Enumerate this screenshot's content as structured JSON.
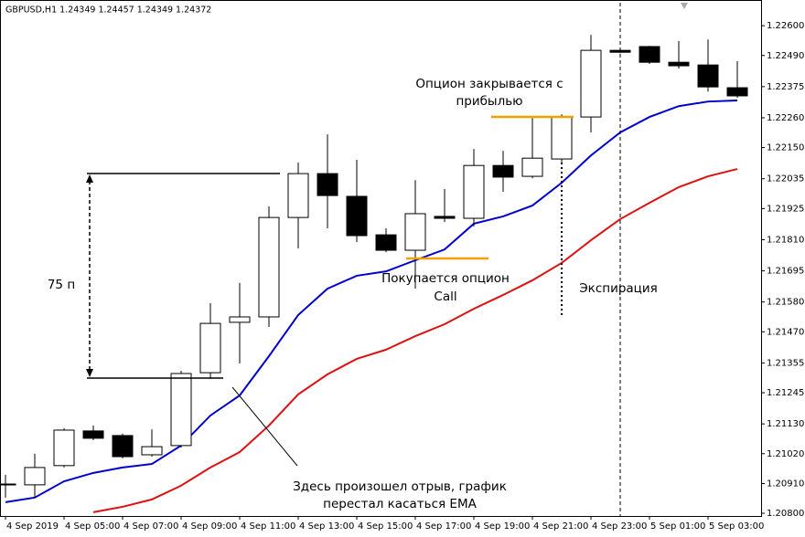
{
  "chart_data": {
    "type": "candlestick",
    "title": "GBPUSD,H1  1.24349 1.24457 1.24349 1.24372",
    "categories": [
      "4 Sep 2019",
      null,
      "4 Sep 05:00",
      null,
      "4 Sep 07:00",
      null,
      "4 Sep 09:00",
      null,
      "4 Sep 11:00",
      null,
      "4 Sep 13:00",
      null,
      "4 Sep 15:00",
      null,
      "4 Sep 17:00",
      null,
      "4 Sep 19:00",
      null,
      "4 Sep 21:00",
      null,
      "4 Sep 23:00",
      null,
      "5 Sep 01:00",
      null,
      "5 Sep 03:00",
      null
    ],
    "open": [
      1.20905,
      1.20905,
      1.20976,
      1.21104,
      1.21087,
      1.21016,
      1.2105,
      1.21319,
      1.21505,
      1.21525,
      1.21892,
      1.22054,
      1.2197,
      1.21828,
      1.21771,
      1.21896,
      1.21889,
      1.22084,
      1.22044,
      1.22108,
      1.22263,
      1.22509,
      1.22523,
      1.22465,
      1.22455,
      1.22371
    ],
    "high": [
      1.20942,
      1.2102,
      1.21114,
      1.21124,
      1.21094,
      1.2111,
      1.21326,
      1.21576,
      1.2165,
      1.21933,
      1.22095,
      1.22199,
      1.22105,
      1.21852,
      1.2203,
      1.21997,
      1.22145,
      1.22138,
      1.22263,
      1.22273,
      1.22566,
      1.22516,
      1.22526,
      1.22543,
      1.22549,
      1.22469
    ],
    "low": [
      1.20858,
      1.20858,
      1.20969,
      1.2107,
      1.21003,
      1.21009,
      1.21043,
      1.21296,
      1.21353,
      1.21488,
      1.21778,
      1.21852,
      1.21801,
      1.21764,
      1.21629,
      1.21875,
      1.21859,
      1.21987,
      1.22037,
      1.22095,
      1.22206,
      1.22499,
      1.22459,
      1.22442,
      1.22357,
      1.22334
    ],
    "close": [
      1.20908,
      1.20969,
      1.21107,
      1.21077,
      1.21009,
      1.21046,
      1.21316,
      1.21501,
      1.21525,
      1.21892,
      1.22054,
      1.21973,
      1.21825,
      1.21771,
      1.21906,
      1.21889,
      1.22084,
      1.22041,
      1.22111,
      1.22263,
      1.22509,
      1.22502,
      1.22465,
      1.22452,
      1.22374,
      1.22341
    ],
    "series": [
      {
        "color": "#0000cc",
        "values": [
          1.20841,
          1.20858,
          1.20918,
          1.20949,
          1.20969,
          1.20982,
          1.2105,
          1.21161,
          1.21235,
          1.2138,
          1.21532,
          1.21629,
          1.21677,
          1.21693,
          1.21734,
          1.21774,
          1.21869,
          1.21896,
          1.21936,
          1.2202,
          1.22121,
          1.22206,
          1.22263,
          1.22303,
          1.2232,
          1.22324
        ]
      },
      {
        "color": "#dd1111",
        "values": [
          null,
          null,
          null,
          1.20804,
          1.20824,
          1.20851,
          1.20902,
          1.20969,
          1.21026,
          1.21124,
          1.21239,
          1.21313,
          1.2137,
          1.21404,
          1.21454,
          1.21498,
          1.21555,
          1.21606,
          1.2166,
          1.21724,
          1.21808,
          1.21886,
          1.21946,
          1.22004,
          1.22044,
          1.22071
        ]
      }
    ],
    "ylim": [
      1.2079,
      1.22678
    ],
    "yticks": [
      {
        "value": 1.226,
        "label": "1.22600"
      },
      {
        "value": 1.2249,
        "label": "1.22490"
      },
      {
        "value": 1.22375,
        "label": "1.22375"
      },
      {
        "value": 1.2226,
        "label": "1.22260"
      },
      {
        "value": 1.2215,
        "label": "1.22150"
      },
      {
        "value": 1.22035,
        "label": "1.22035"
      },
      {
        "value": 1.21925,
        "label": "1.21925"
      },
      {
        "value": 1.2181,
        "label": "1.21810"
      },
      {
        "value": 1.21695,
        "label": "1.21695"
      },
      {
        "value": 1.2158,
        "label": "1.21580"
      },
      {
        "value": 1.2147,
        "label": "1.21470"
      },
      {
        "value": 1.21355,
        "label": "1.21355"
      },
      {
        "value": 1.21245,
        "label": "1.21245"
      },
      {
        "value": 1.2113,
        "label": "1.21130"
      },
      {
        "value": 1.2102,
        "label": "1.21020"
      },
      {
        "value": 1.2091,
        "label": "1.20910"
      },
      {
        "value": 1.208,
        "label": "1.20800"
      }
    ],
    "up_color": "#ffffff",
    "down_color": "#000000",
    "annotations": {
      "close_note": [
        "Опцион закрывается с",
        "прибылью"
      ],
      "buy_note": [
        "Покупается опцион",
        "Call"
      ],
      "expiry_note": "Экспирация",
      "range_note": "75 п",
      "gap_note": [
        "Здесь произошел отрыв, график",
        "перестал касаться EMA"
      ]
    }
  }
}
